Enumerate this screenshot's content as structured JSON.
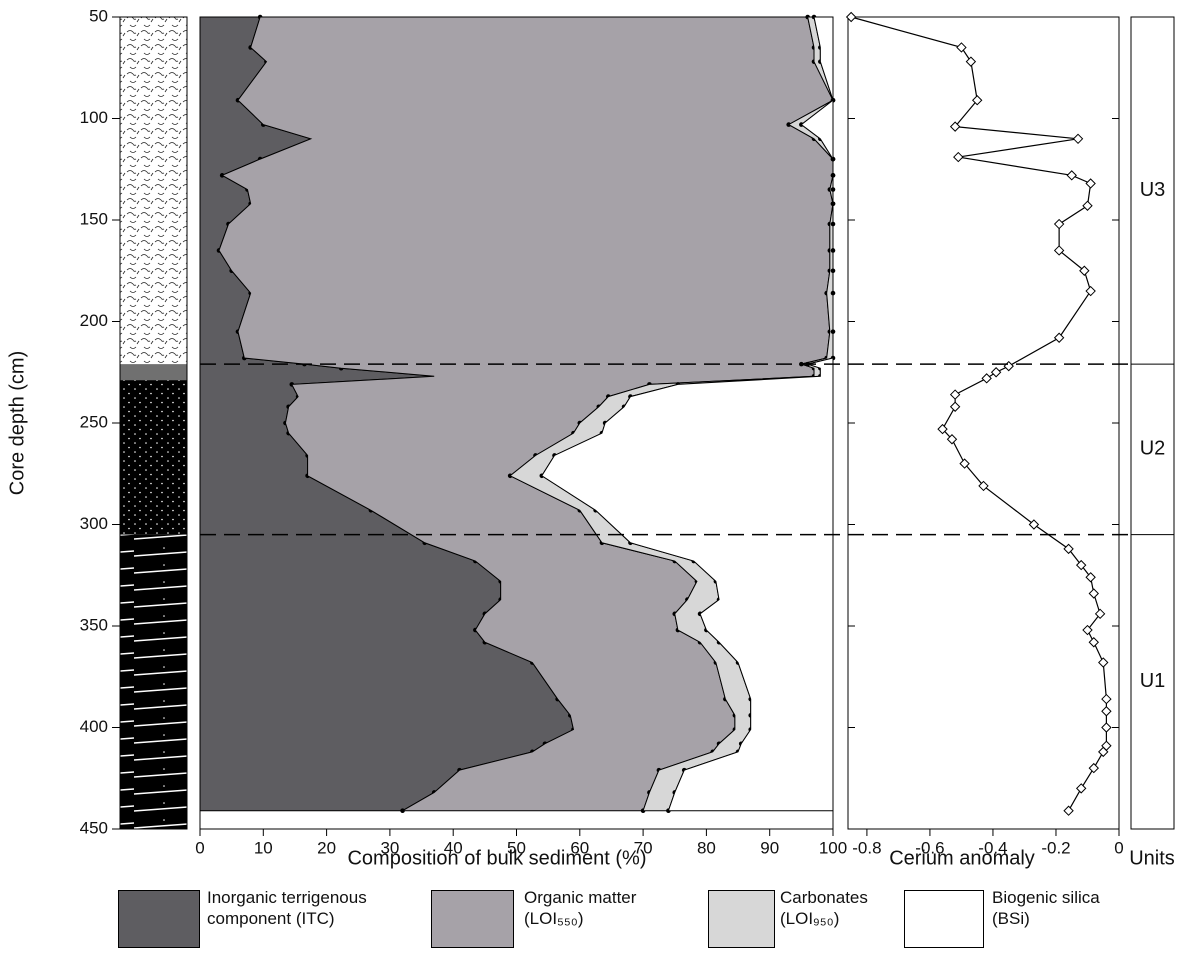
{
  "chart_data": [
    {
      "type": "area",
      "stacked": true,
      "orientation": "vertical",
      "x_label": "Core depth (cm)",
      "y_label": "Composition of bulk sediment (%)",
      "x": [
        50,
        65,
        72,
        91,
        103,
        110,
        120,
        128,
        135,
        142,
        152,
        165,
        175,
        186,
        205,
        218,
        221,
        223,
        227,
        231,
        237,
        242,
        250,
        255,
        266,
        276,
        293,
        309,
        318,
        328,
        337,
        344,
        352,
        358,
        368,
        386,
        394,
        401,
        408,
        412,
        421,
        432,
        441
      ],
      "xlim": [
        50,
        450
      ],
      "xticks": [
        50,
        100,
        150,
        200,
        250,
        300,
        350,
        400,
        450
      ],
      "ylim": [
        0,
        100
      ],
      "yticks": [
        0,
        10,
        20,
        30,
        40,
        50,
        60,
        70,
        80,
        90,
        100
      ],
      "series": [
        {
          "name": "Inorganic terrigenous component (ITC)",
          "color": "#5e5d61",
          "values": [
            9.5,
            8,
            10.5,
            6,
            10,
            17.5,
            9.5,
            3.5,
            7.5,
            8,
            4.5,
            3,
            5,
            8,
            6,
            7,
            16.5,
            22.3,
            37,
            14.5,
            15.5,
            14,
            13.5,
            14,
            17,
            17,
            27,
            35.5,
            43.5,
            47.5,
            47.5,
            45,
            43.5,
            45,
            52.5,
            56.5,
            58.5,
            59,
            54.5,
            52.5,
            41,
            37,
            32
          ]
        },
        {
          "name": "Organic matter (LOI₅₅₀)",
          "color": "#a6a2a8",
          "values": [
            86.5,
            89,
            86.5,
            94,
            83,
            79.5,
            90.5,
            96.5,
            92,
            92,
            95,
            96.5,
            94.5,
            91,
            93.5,
            92,
            78.5,
            74.7,
            60,
            56.5,
            49,
            49,
            46.5,
            45,
            36,
            32,
            33,
            28,
            31.5,
            31,
            29.5,
            30,
            32,
            34,
            29,
            26.5,
            26,
            25.5,
            27.5,
            28.5,
            31.5,
            34,
            38
          ]
        },
        {
          "name": "Carbonates (LOI₉₅₀)",
          "color": "#d7d7d7",
          "values": [
            1,
            1,
            1,
            0,
            2,
            1,
            0,
            0,
            0.5,
            0,
            0.5,
            0.5,
            0.5,
            1,
            0.5,
            1,
            1,
            1,
            1,
            4.5,
            3.5,
            4,
            4,
            4.5,
            3,
            5,
            2.5,
            4.5,
            3,
            3,
            5,
            4,
            4.5,
            3,
            3.5,
            4,
            2.5,
            2.5,
            3.5,
            4,
            4,
            4,
            4
          ]
        },
        {
          "name": "Biogenic silica (BSi)",
          "color": "#ffffff",
          "values": [
            3,
            2,
            2,
            0,
            5,
            2,
            0,
            0,
            0,
            0,
            0,
            0,
            0,
            0,
            0,
            0,
            4,
            2,
            2,
            24.5,
            32,
            33,
            36,
            36.5,
            44,
            46,
            37.5,
            32,
            22,
            18.5,
            18,
            21,
            20,
            18,
            15,
            13,
            13,
            13,
            14.5,
            15,
            23.5,
            25,
            26
          ]
        }
      ]
    },
    {
      "type": "line",
      "y_label": "Cerium anomaly",
      "marker": "diamond",
      "x": [
        50,
        65,
        72,
        91,
        104,
        110,
        119,
        128,
        132,
        143,
        152,
        165,
        175,
        185,
        208,
        222,
        225,
        228,
        236,
        242,
        253,
        258,
        270,
        281,
        300,
        312,
        320,
        326,
        334,
        344,
        352,
        358,
        368,
        386,
        392,
        400,
        409,
        412,
        420,
        430,
        441
      ],
      "ylim": [
        -0.86,
        0
      ],
      "yticks": [
        -0.8,
        -0.6,
        -0.4,
        -0.2,
        0
      ],
      "series": [
        {
          "color": "#000000",
          "values": [
            -0.85,
            -0.5,
            -0.47,
            -0.45,
            -0.52,
            -0.13,
            -0.51,
            -0.15,
            -0.09,
            -0.1,
            -0.19,
            -0.19,
            -0.11,
            -0.09,
            -0.19,
            -0.35,
            -0.39,
            -0.42,
            -0.52,
            -0.52,
            -0.56,
            -0.53,
            -0.49,
            -0.43,
            -0.27,
            -0.16,
            -0.12,
            -0.09,
            -0.08,
            -0.06,
            -0.1,
            -0.08,
            -0.05,
            -0.04,
            -0.04,
            -0.04,
            -0.04,
            -0.05,
            -0.08,
            -0.12,
            -0.16
          ]
        }
      ]
    },
    {
      "type": "units",
      "title": "Units",
      "categories": [
        "U3",
        "U2",
        "U1"
      ],
      "boundaries": [
        221,
        305
      ]
    }
  ]
}
